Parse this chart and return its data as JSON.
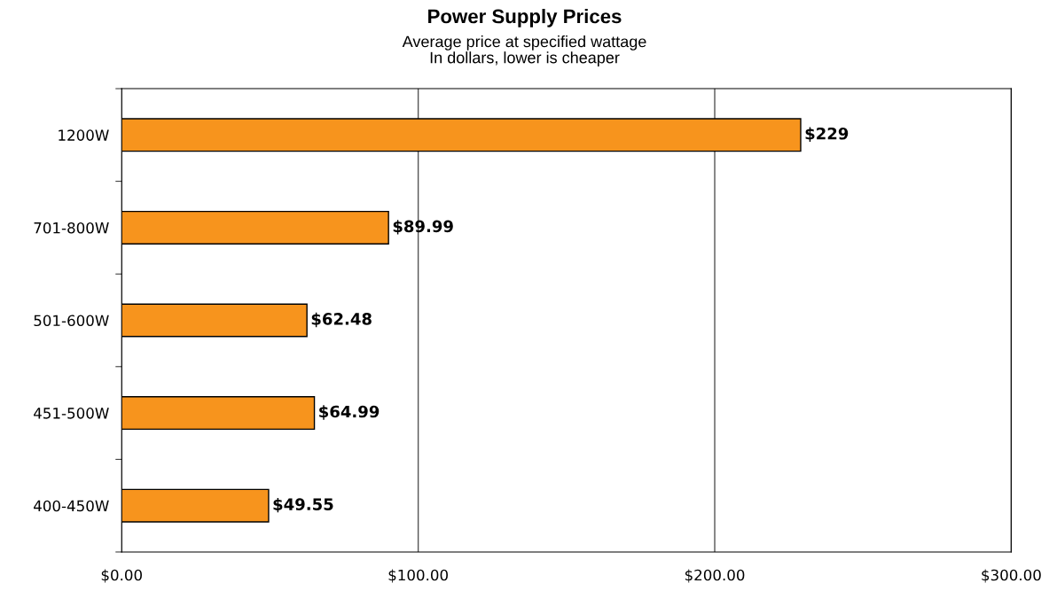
{
  "chart_data": {
    "type": "bar",
    "orientation": "horizontal",
    "title": "Power Supply Prices",
    "subtitle": "Average price at specified wattage\nIn dollars, lower is cheaper",
    "categories": [
      "1200W",
      "701-800W",
      "501-600W",
      "451-500W",
      "400-450W"
    ],
    "values": [
      229,
      89.99,
      62.48,
      64.99,
      49.55
    ],
    "value_labels": [
      "$229",
      "$89.99",
      "$62.48",
      "$64.99",
      "$49.55"
    ],
    "color": "#f7941d",
    "xlim": [
      0,
      300
    ],
    "xticks": [
      {
        "value": 0,
        "label": "$0.00"
      },
      {
        "value": 100,
        "label": "$100.00"
      },
      {
        "value": 200,
        "label": "$200.00"
      },
      {
        "value": 300,
        "label": "$300.00"
      }
    ],
    "grid": "x",
    "legend": false
  }
}
